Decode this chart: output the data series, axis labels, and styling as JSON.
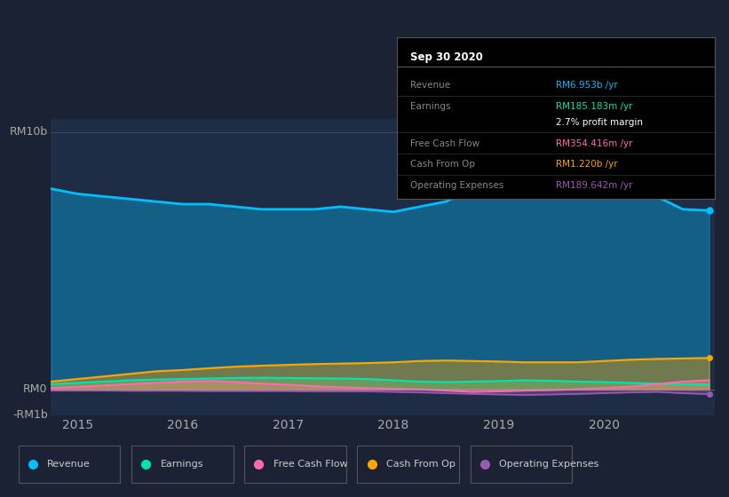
{
  "bg_color": "#1a2233",
  "plot_bg_color": "#1e2d45",
  "ylabel_top": "RM10b",
  "ylabel_zero": "RM0",
  "ylabel_neg": "-RM1b",
  "x_ticks": [
    2015,
    2016,
    2017,
    2018,
    2019,
    2020
  ],
  "colors": {
    "revenue": "#00bfff",
    "earnings": "#00e5b0",
    "free_cash_flow": "#ff69b4",
    "cash_from_op": "#ffa500",
    "operating_expenses": "#9b59b6"
  },
  "legend_items": [
    {
      "label": "Revenue",
      "color": "#00bfff"
    },
    {
      "label": "Earnings",
      "color": "#00e5b0"
    },
    {
      "label": "Free Cash Flow",
      "color": "#ff69b4"
    },
    {
      "label": "Cash From Op",
      "color": "#ffa500"
    },
    {
      "label": "Operating Expenses",
      "color": "#9b59b6"
    }
  ],
  "info_box": {
    "title": "Sep 30 2020",
    "rows": [
      {
        "label": "Revenue",
        "value": "RM6.953b /yr",
        "value_color": "#00bfff"
      },
      {
        "label": "Earnings",
        "value": "RM185.183m /yr",
        "value_color": "#00e5b0"
      },
      {
        "label": "",
        "value": "2.7% profit margin",
        "value_color": "#ffffff"
      },
      {
        "label": "Free Cash Flow",
        "value": "RM354.416m /yr",
        "value_color": "#ff69b4"
      },
      {
        "label": "Cash From Op",
        "value": "RM1.220b /yr",
        "value_color": "#ffa500"
      },
      {
        "label": "Operating Expenses",
        "value": "RM189.642m /yr",
        "value_color": "#9b59b6"
      }
    ]
  },
  "x": [
    2014.75,
    2015.0,
    2015.25,
    2015.5,
    2015.75,
    2016.0,
    2016.25,
    2016.5,
    2016.75,
    2017.0,
    2017.25,
    2017.5,
    2017.75,
    2018.0,
    2018.25,
    2018.5,
    2018.75,
    2019.0,
    2019.25,
    2019.5,
    2019.75,
    2020.0,
    2020.25,
    2020.5,
    2020.75,
    2021.0
  ],
  "revenue": [
    7.8,
    7.6,
    7.5,
    7.4,
    7.3,
    7.2,
    7.2,
    7.1,
    7.0,
    7.0,
    7.0,
    7.1,
    7.0,
    6.9,
    7.1,
    7.3,
    7.8,
    8.5,
    9.2,
    9.5,
    9.3,
    8.8,
    8.2,
    7.5,
    7.0,
    6.953
  ],
  "earnings": [
    0.2,
    0.25,
    0.3,
    0.35,
    0.38,
    0.4,
    0.42,
    0.44,
    0.45,
    0.44,
    0.43,
    0.42,
    0.4,
    0.35,
    0.3,
    0.28,
    0.3,
    0.32,
    0.35,
    0.33,
    0.3,
    0.28,
    0.25,
    0.22,
    0.2,
    0.185
  ],
  "free_cash_flow": [
    0.05,
    0.1,
    0.15,
    0.2,
    0.25,
    0.3,
    0.32,
    0.28,
    0.22,
    0.18,
    0.12,
    0.08,
    0.05,
    0.02,
    0.0,
    -0.05,
    -0.1,
    -0.08,
    -0.05,
    -0.03,
    0.0,
    0.05,
    0.1,
    0.2,
    0.3,
    0.354
  ],
  "cash_from_op": [
    0.3,
    0.4,
    0.5,
    0.6,
    0.7,
    0.75,
    0.82,
    0.88,
    0.92,
    0.95,
    0.98,
    1.0,
    1.02,
    1.05,
    1.1,
    1.12,
    1.1,
    1.08,
    1.05,
    1.05,
    1.05,
    1.1,
    1.15,
    1.18,
    1.2,
    1.22
  ],
  "operating_expenses": [
    -0.05,
    -0.05,
    -0.05,
    -0.06,
    -0.06,
    -0.06,
    -0.07,
    -0.07,
    -0.07,
    -0.07,
    -0.08,
    -0.08,
    -0.08,
    -0.1,
    -0.12,
    -0.15,
    -0.18,
    -0.2,
    -0.22,
    -0.2,
    -0.18,
    -0.15,
    -0.12,
    -0.1,
    -0.15,
    -0.19
  ]
}
